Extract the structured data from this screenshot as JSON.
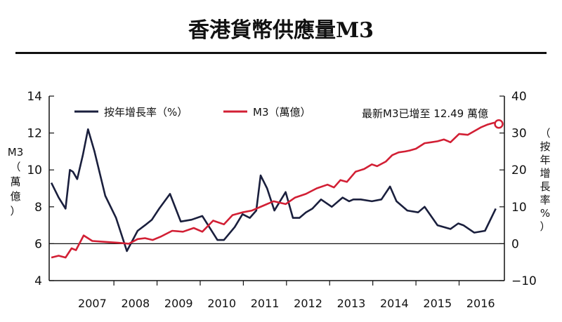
{
  "title": "香港貨幣供應量M3",
  "chart_data": {
    "type": "line",
    "x_categories": [
      "2007",
      "2008",
      "2009",
      "2010",
      "2011",
      "2012",
      "2013",
      "2014",
      "2015",
      "2016"
    ],
    "left_axis": {
      "label": [
        "M3",
        "（",
        "萬",
        "億",
        "）"
      ],
      "ticks": [
        "14",
        "12",
        "10",
        "8",
        "6",
        "4"
      ],
      "ylim": [
        4,
        14
      ]
    },
    "right_axis": {
      "label": [
        "（",
        "按",
        "年",
        "增",
        "長",
        "率",
        "%",
        "）"
      ],
      "ticks": [
        "40",
        "30",
        "20",
        "10",
        "0",
        "−10"
      ],
      "ylim": [
        -10,
        40
      ]
    },
    "legend": [
      {
        "name": "按年增長率（%）",
        "color": "#1a1f3d"
      },
      {
        "name": "M3（萬億）",
        "color": "#d21f34"
      }
    ],
    "annotation": "最新M3已增至 12.49 萬億",
    "series": [
      {
        "name": "按年增長率（%）",
        "axis": "right",
        "color": "#1a1f3d",
        "x": [
          2006.55,
          2006.72,
          2006.88,
          2006.98,
          2007.05,
          2007.15,
          2007.28,
          2007.4,
          2007.55,
          2007.8,
          2008.05,
          2008.3,
          2008.55,
          2008.72,
          2008.88,
          2009.05,
          2009.3,
          2009.55,
          2009.8,
          2010.05,
          2010.4,
          2010.55,
          2010.8,
          2010.98,
          2011.15,
          2011.3,
          2011.4,
          2011.55,
          2011.72,
          2011.98,
          2012.15,
          2012.3,
          2012.45,
          2012.6,
          2012.8,
          2013.05,
          2013.3,
          2013.45,
          2013.55,
          2013.72,
          2013.98,
          2014.2,
          2014.4,
          2014.55,
          2014.8,
          2015.05,
          2015.2,
          2015.5,
          2015.8,
          2015.98,
          2016.1,
          2016.35,
          2016.6,
          2016.85
        ],
        "values": [
          16.5,
          12.5,
          9.5,
          20.0,
          19.5,
          17.5,
          24.0,
          31.0,
          25.0,
          13.0,
          7.0,
          -2.0,
          3.5,
          5.0,
          6.5,
          9.5,
          13.5,
          6.0,
          6.5,
          7.5,
          1.0,
          1.0,
          4.5,
          8.0,
          7.0,
          9.0,
          18.5,
          15.0,
          9.0,
          14.0,
          7.0,
          7.0,
          8.5,
          9.5,
          12.0,
          10.0,
          12.5,
          11.5,
          12.0,
          12.0,
          11.5,
          12.0,
          15.5,
          11.5,
          9.0,
          8.5,
          10.0,
          5.0,
          4.0,
          5.5,
          5.0,
          3.0,
          3.5,
          9.5
        ]
      },
      {
        "name": "M3（萬億）",
        "axis": "left",
        "color": "#d21f34",
        "x": [
          2006.55,
          2006.72,
          2006.88,
          2007.02,
          2007.12,
          2007.3,
          2007.5,
          2007.8,
          2008.1,
          2008.35,
          2008.55,
          2008.72,
          2008.9,
          2009.1,
          2009.35,
          2009.6,
          2009.85,
          2010.05,
          2010.3,
          2010.55,
          2010.75,
          2010.98,
          2011.2,
          2011.45,
          2011.7,
          2011.98,
          2012.2,
          2012.45,
          2012.7,
          2012.95,
          2013.1,
          2013.25,
          2013.4,
          2013.6,
          2013.8,
          2013.98,
          2014.1,
          2014.3,
          2014.45,
          2014.6,
          2014.75,
          2014.85,
          2015.0,
          2015.2,
          2015.35,
          2015.5,
          2015.65,
          2015.8,
          2016.0,
          2016.2,
          2016.35,
          2016.5,
          2016.65,
          2016.8,
          2016.92
        ],
        "values": [
          5.25,
          5.35,
          5.25,
          5.75,
          5.65,
          6.45,
          6.15,
          6.1,
          6.05,
          6.0,
          6.25,
          6.3,
          6.2,
          6.4,
          6.7,
          6.65,
          6.85,
          6.65,
          7.25,
          7.05,
          7.55,
          7.7,
          7.8,
          8.05,
          8.3,
          8.15,
          8.5,
          8.7,
          9.0,
          9.2,
          9.05,
          9.45,
          9.35,
          9.9,
          10.05,
          10.3,
          10.2,
          10.45,
          10.8,
          10.95,
          11.0,
          11.05,
          11.15,
          11.45,
          11.5,
          11.55,
          11.65,
          11.5,
          11.95,
          11.9,
          12.1,
          12.3,
          12.45,
          12.55,
          12.55
        ]
      }
    ],
    "highlight_point": {
      "x": 2016.92,
      "value": 12.49
    }
  }
}
